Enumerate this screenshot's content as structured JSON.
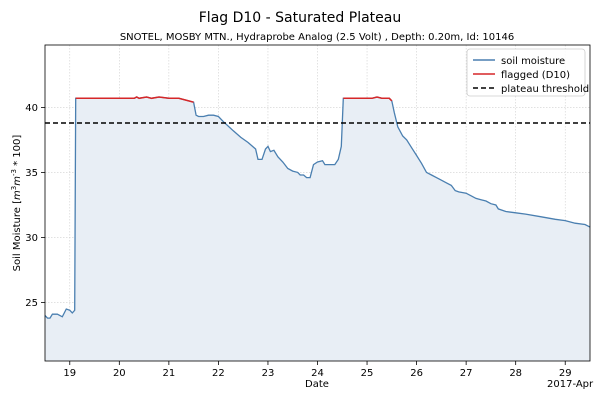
{
  "chart_data": {
    "type": "line",
    "title": "Flag D10 - Saturated Plateau",
    "subtitle": "SNOTEL, MOSBY MTN., Hydraprobe Analog (2.5 Volt) , Depth: 0.20m, Id: 10146",
    "xlabel": "Date",
    "ylabel": "Soil Moisture [m^3 m^-3 * 100]",
    "x_offset_label": "2017-Apr",
    "xlim": [
      18.5,
      29.5
    ],
    "ylim": [
      20.5,
      44.8
    ],
    "x_ticks": [
      19,
      20,
      21,
      22,
      23,
      24,
      25,
      26,
      27,
      28,
      29
    ],
    "y_ticks": [
      25,
      30,
      35,
      40
    ],
    "grid": true,
    "legend": {
      "position": "top-right",
      "entries": [
        "soil moisture",
        "flagged (D10)",
        "plateau threshold"
      ]
    },
    "threshold": 38.8,
    "series": [
      {
        "name": "soil moisture",
        "color": "#4a7fb0",
        "points": [
          [
            18.5,
            24.0
          ],
          [
            18.55,
            23.8
          ],
          [
            18.6,
            23.8
          ],
          [
            18.65,
            24.1
          ],
          [
            18.75,
            24.1
          ],
          [
            18.85,
            23.9
          ],
          [
            18.93,
            24.5
          ],
          [
            19.0,
            24.4
          ],
          [
            19.05,
            24.2
          ],
          [
            19.1,
            24.4
          ],
          [
            19.12,
            40.7
          ],
          [
            19.5,
            40.7
          ],
          [
            20.0,
            40.7
          ],
          [
            20.3,
            40.7
          ],
          [
            20.35,
            40.8
          ],
          [
            20.4,
            40.7
          ],
          [
            20.55,
            40.8
          ],
          [
            20.65,
            40.7
          ],
          [
            20.8,
            40.8
          ],
          [
            21.0,
            40.7
          ],
          [
            21.2,
            40.7
          ],
          [
            21.4,
            40.5
          ],
          [
            21.5,
            40.4
          ],
          [
            21.55,
            39.4
          ],
          [
            21.6,
            39.3
          ],
          [
            21.7,
            39.3
          ],
          [
            21.8,
            39.4
          ],
          [
            21.9,
            39.4
          ],
          [
            22.0,
            39.3
          ],
          [
            22.1,
            38.9
          ],
          [
            22.3,
            38.2
          ],
          [
            22.45,
            37.7
          ],
          [
            22.6,
            37.3
          ],
          [
            22.75,
            36.8
          ],
          [
            22.8,
            36.0
          ],
          [
            22.88,
            36.0
          ],
          [
            22.95,
            36.8
          ],
          [
            23.0,
            37.0
          ],
          [
            23.05,
            36.6
          ],
          [
            23.12,
            36.7
          ],
          [
            23.2,
            36.2
          ],
          [
            23.3,
            35.8
          ],
          [
            23.4,
            35.3
          ],
          [
            23.5,
            35.1
          ],
          [
            23.6,
            35.0
          ],
          [
            23.65,
            34.8
          ],
          [
            23.72,
            34.8
          ],
          [
            23.78,
            34.6
          ],
          [
            23.85,
            34.6
          ],
          [
            23.92,
            35.6
          ],
          [
            24.0,
            35.8
          ],
          [
            24.1,
            35.9
          ],
          [
            24.15,
            35.6
          ],
          [
            24.25,
            35.6
          ],
          [
            24.35,
            35.6
          ],
          [
            24.42,
            36.0
          ],
          [
            24.48,
            37.0
          ],
          [
            24.52,
            40.7
          ],
          [
            25.0,
            40.7
          ],
          [
            25.1,
            40.7
          ],
          [
            25.2,
            40.8
          ],
          [
            25.3,
            40.7
          ],
          [
            25.45,
            40.7
          ],
          [
            25.5,
            40.5
          ],
          [
            25.55,
            39.6
          ],
          [
            25.62,
            38.5
          ],
          [
            25.72,
            37.8
          ],
          [
            25.8,
            37.5
          ],
          [
            25.9,
            36.9
          ],
          [
            26.0,
            36.3
          ],
          [
            26.1,
            35.7
          ],
          [
            26.2,
            35.0
          ],
          [
            26.3,
            34.8
          ],
          [
            26.4,
            34.6
          ],
          [
            26.5,
            34.4
          ],
          [
            26.6,
            34.2
          ],
          [
            26.7,
            34.0
          ],
          [
            26.78,
            33.6
          ],
          [
            26.85,
            33.5
          ],
          [
            27.0,
            33.4
          ],
          [
            27.1,
            33.2
          ],
          [
            27.2,
            33.0
          ],
          [
            27.3,
            32.9
          ],
          [
            27.4,
            32.8
          ],
          [
            27.5,
            32.6
          ],
          [
            27.6,
            32.5
          ],
          [
            27.65,
            32.2
          ],
          [
            27.8,
            32.0
          ],
          [
            28.0,
            31.9
          ],
          [
            28.2,
            31.8
          ],
          [
            28.5,
            31.6
          ],
          [
            28.8,
            31.4
          ],
          [
            29.0,
            31.3
          ],
          [
            29.2,
            31.1
          ],
          [
            29.4,
            31.0
          ],
          [
            29.5,
            30.8
          ]
        ]
      },
      {
        "name": "flagged (D10)",
        "color": "#d62728",
        "segments": [
          [
            [
              19.12,
              40.7
            ],
            [
              19.5,
              40.7
            ],
            [
              20.0,
              40.7
            ],
            [
              20.3,
              40.7
            ],
            [
              20.35,
              40.8
            ],
            [
              20.4,
              40.7
            ],
            [
              20.55,
              40.8
            ],
            [
              20.65,
              40.7
            ],
            [
              20.8,
              40.8
            ],
            [
              21.0,
              40.7
            ],
            [
              21.2,
              40.7
            ],
            [
              21.4,
              40.5
            ],
            [
              21.5,
              40.4
            ]
          ],
          [
            [
              24.52,
              40.7
            ],
            [
              25.0,
              40.7
            ],
            [
              25.1,
              40.7
            ],
            [
              25.2,
              40.8
            ],
            [
              25.3,
              40.7
            ],
            [
              25.45,
              40.7
            ],
            [
              25.5,
              40.5
            ]
          ]
        ]
      }
    ]
  }
}
